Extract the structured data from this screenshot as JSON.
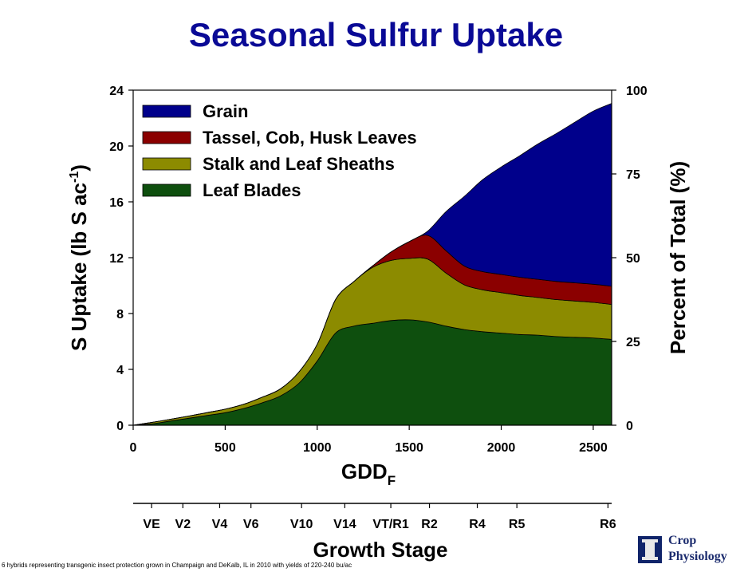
{
  "title": "Seasonal Sulfur Uptake",
  "footnote": "6 hybrids representing transgenic insect protection grown in Champaign and DeKalb, IL in 2010 with yields of 220-240 bu/ac",
  "logo": {
    "line1": "Crop",
    "line2": "Physiology",
    "icon": "illinois-block-i-icon"
  },
  "chart_data": {
    "type": "area",
    "stacked": true,
    "xlabel_main": "GDD",
    "xlabel_sub": "F",
    "ylabel": "S Uptake (lb S ac",
    "ylabel_sup": "-1",
    "ylabel_close": ")",
    "y2label": "Percent of Total (%)",
    "xlim": [
      0,
      2600
    ],
    "ylim": [
      0,
      24
    ],
    "y2lim": [
      0,
      100
    ],
    "x_ticks": [
      "0",
      "500",
      "1000",
      "1500",
      "2000",
      "2500"
    ],
    "x_tick_values": [
      0,
      500,
      1000,
      1500,
      2000,
      2500
    ],
    "y_ticks": [
      "0",
      "4",
      "8",
      "12",
      "16",
      "20",
      "24"
    ],
    "y_tick_values": [
      0,
      4,
      8,
      12,
      16,
      20,
      24
    ],
    "y2_ticks": [
      "0",
      "25",
      "50",
      "75",
      "100"
    ],
    "y2_tick_values": [
      0,
      25,
      50,
      75,
      100
    ],
    "legend_position": "top-left",
    "x": [
      0,
      100,
      200,
      300,
      400,
      500,
      600,
      700,
      800,
      900,
      1000,
      1100,
      1200,
      1300,
      1400,
      1500,
      1600,
      1700,
      1800,
      1900,
      2000,
      2100,
      2200,
      2300,
      2400,
      2500,
      2600
    ],
    "series": [
      {
        "name": "Leaf Blades",
        "color": "#0e4f0e",
        "values": [
          0,
          0.1,
          0.3,
          0.5,
          0.7,
          0.9,
          1.2,
          1.6,
          2.1,
          3.0,
          4.6,
          6.6,
          7.1,
          7.3,
          7.5,
          7.55,
          7.4,
          7.1,
          6.85,
          6.7,
          6.6,
          6.5,
          6.45,
          6.35,
          6.3,
          6.25,
          6.15
        ]
      },
      {
        "name": "Stalk and Leaf Sheaths",
        "color": "#8c8b00",
        "values": [
          0,
          0.1,
          0.12,
          0.15,
          0.2,
          0.25,
          0.3,
          0.4,
          0.5,
          0.8,
          1.2,
          2.4,
          3.2,
          4.0,
          4.3,
          4.4,
          4.5,
          3.8,
          3.2,
          3.0,
          2.9,
          2.8,
          2.7,
          2.65,
          2.6,
          2.55,
          2.5
        ]
      },
      {
        "name": "Tassel, Cob, Husk Leaves",
        "color": "#8b0000",
        "values": [
          0,
          0,
          0,
          0,
          0,
          0,
          0,
          0,
          0,
          0,
          0,
          0,
          0,
          0.1,
          0.6,
          1.2,
          1.7,
          1.6,
          1.35,
          1.3,
          1.3,
          1.3,
          1.3,
          1.3,
          1.3,
          1.3,
          1.3
        ]
      },
      {
        "name": "Grain",
        "color": "#00008b",
        "values": [
          0,
          0,
          0,
          0,
          0,
          0,
          0,
          0,
          0,
          0,
          0,
          0,
          0,
          0,
          0,
          0,
          0.3,
          2.8,
          5.0,
          6.6,
          7.7,
          8.7,
          9.7,
          10.6,
          11.5,
          12.4,
          13.1
        ]
      }
    ],
    "legend_order": [
      "Grain",
      "Tassel, Cob, Husk Leaves",
      "Stalk and Leaf Sheaths",
      "Leaf Blades"
    ],
    "growth_stage_axis": {
      "label": "Growth Stage",
      "stages": [
        {
          "label": "VE",
          "gdd": 100
        },
        {
          "label": "V2",
          "gdd": 270
        },
        {
          "label": "V4",
          "gdd": 470
        },
        {
          "label": "V6",
          "gdd": 640
        },
        {
          "label": "V10",
          "gdd": 915
        },
        {
          "label": "V14",
          "gdd": 1150
        },
        {
          "label": "VT/R1",
          "gdd": 1400
        },
        {
          "label": "R2",
          "gdd": 1610
        },
        {
          "label": "R4",
          "gdd": 1870
        },
        {
          "label": "R5",
          "gdd": 2085
        },
        {
          "label": "R6",
          "gdd": 2580
        }
      ]
    }
  }
}
